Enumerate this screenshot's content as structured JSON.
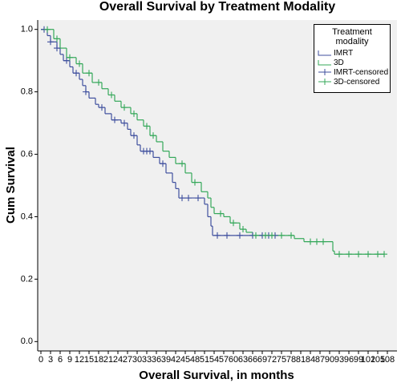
{
  "chart_data": {
    "type": "line",
    "title": "Overall Survival by Treatment Modality",
    "x_label": "Overall Survival, in months",
    "y_label": "Cum Survival",
    "legend_title": "Treatment modality",
    "legend": "upper right",
    "xlim": [
      -1,
      111
    ],
    "ylim": [
      -0.03,
      1.03
    ],
    "xticks": [
      0,
      6,
      12,
      18,
      24,
      30,
      36,
      42,
      48,
      54,
      60,
      66,
      72,
      78,
      84,
      90,
      96,
      102,
      108
    ],
    "xticks_minor": [
      3,
      9,
      15,
      21,
      27,
      33,
      39,
      45,
      51,
      57,
      63,
      69,
      75,
      81,
      87,
      93,
      99,
      105
    ],
    "yticks": [
      {
        "value": 0,
        "label": "0.0"
      },
      0.2,
      0.4,
      0.6,
      0.8,
      {
        "value": 1,
        "label": "1.0"
      }
    ],
    "series": [
      {
        "name": "IMRT",
        "color": "#3f4f9e",
        "style": "step",
        "x": [
          0,
          2,
          3,
          5,
          6,
          7,
          9,
          10,
          12,
          13,
          14,
          15,
          17,
          18,
          20,
          22,
          25,
          27,
          28,
          30,
          31,
          35,
          37,
          39,
          41,
          42,
          43,
          51,
          52,
          53,
          53.5,
          73
        ],
        "values": [
          1.0,
          0.98,
          0.96,
          0.94,
          0.92,
          0.9,
          0.88,
          0.86,
          0.84,
          0.82,
          0.8,
          0.78,
          0.76,
          0.75,
          0.73,
          0.71,
          0.7,
          0.68,
          0.66,
          0.63,
          0.61,
          0.59,
          0.57,
          0.54,
          0.51,
          0.49,
          0.46,
          0.44,
          0.4,
          0.37,
          0.34,
          0.34
        ]
      },
      {
        "name": "3D",
        "color": "#35a85a",
        "style": "step",
        "x": [
          0,
          4,
          6,
          8,
          11,
          13,
          16,
          19,
          21,
          23,
          25,
          28,
          30,
          32,
          34,
          36,
          38,
          40,
          42,
          45,
          47,
          50,
          52,
          53,
          54,
          57,
          59,
          62,
          64,
          66,
          79,
          82,
          91,
          91.5,
          107
        ],
        "values": [
          1.0,
          0.97,
          0.94,
          0.91,
          0.89,
          0.86,
          0.83,
          0.81,
          0.79,
          0.77,
          0.75,
          0.73,
          0.71,
          0.69,
          0.66,
          0.64,
          0.61,
          0.59,
          0.57,
          0.54,
          0.51,
          0.48,
          0.46,
          0.43,
          0.41,
          0.4,
          0.38,
          0.36,
          0.35,
          0.34,
          0.33,
          0.32,
          0.29,
          0.28,
          0.28
        ]
      },
      {
        "name": "IMRT-censored",
        "color": "#3f4f9e",
        "style": "censored",
        "x": [
          1,
          3,
          5,
          8,
          11,
          14,
          19,
          23,
          26,
          29,
          32,
          33,
          34,
          38,
          44,
          46,
          49,
          55,
          58,
          62,
          66,
          69,
          71,
          73
        ],
        "values": [
          1.0,
          0.96,
          0.94,
          0.9,
          0.86,
          0.8,
          0.75,
          0.71,
          0.7,
          0.66,
          0.61,
          0.61,
          0.61,
          0.57,
          0.46,
          0.46,
          0.46,
          0.34,
          0.34,
          0.34,
          0.34,
          0.34,
          0.34,
          0.34
        ]
      },
      {
        "name": "3D-censored",
        "color": "#35a85a",
        "style": "censored",
        "x": [
          2,
          5,
          9,
          12,
          15,
          18,
          22,
          26,
          29,
          33,
          35,
          44,
          48,
          56,
          60,
          63,
          67,
          70,
          72,
          75,
          78,
          84,
          86,
          88,
          93,
          96,
          99,
          102,
          105,
          107
        ],
        "values": [
          1.0,
          0.97,
          0.91,
          0.89,
          0.86,
          0.83,
          0.79,
          0.75,
          0.73,
          0.69,
          0.66,
          0.57,
          0.51,
          0.41,
          0.38,
          0.36,
          0.34,
          0.34,
          0.34,
          0.34,
          0.34,
          0.32,
          0.32,
          0.32,
          0.28,
          0.28,
          0.28,
          0.28,
          0.28,
          0.28
        ]
      }
    ]
  }
}
